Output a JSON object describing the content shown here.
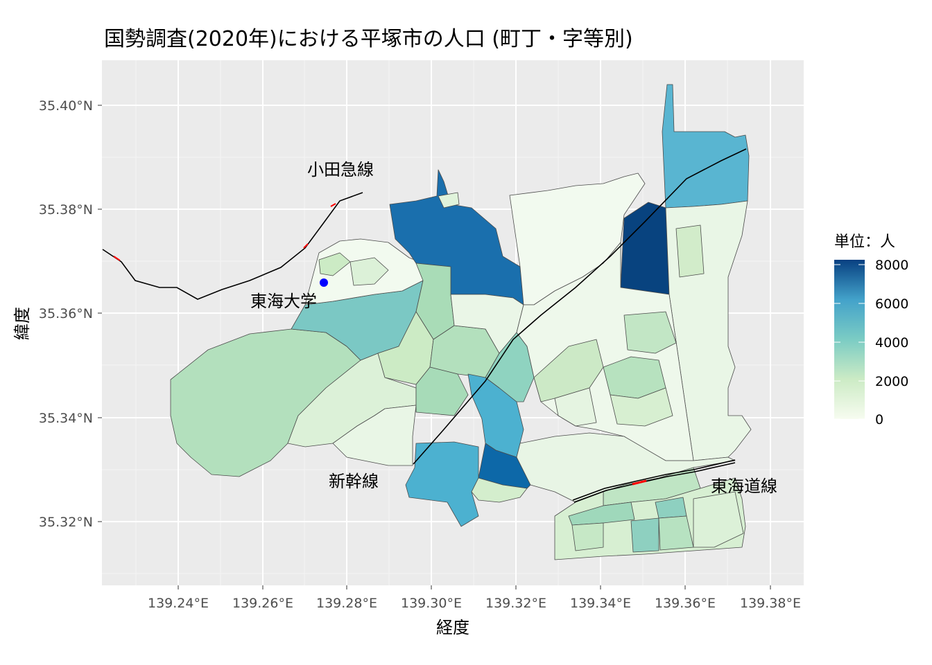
{
  "title": "国勢調査(2020年)における平塚市の人口 (町丁・字等別)",
  "xlabel": "経度",
  "ylabel": "緯度",
  "x_ticks": [
    "139.24°E",
    "139.26°E",
    "139.28°E",
    "139.30°E",
    "139.32°E",
    "139.34°E",
    "139.36°E",
    "139.38°E"
  ],
  "y_ticks": [
    "35.32°N",
    "35.34°N",
    "35.36°N",
    "35.38°N",
    "35.40°N"
  ],
  "legend": {
    "title": "単位：人",
    "ticks": [
      "8000",
      "6000",
      "4000",
      "2000",
      "0"
    ],
    "colors": [
      "#f7fcf0",
      "#ccebc5",
      "#7bccc4",
      "#43a2ca",
      "#084081"
    ]
  },
  "annotations": {
    "odakyu": "小田急線",
    "tokai_univ": "東海大学",
    "shinkansen": "新幹線",
    "tokaido": "東海道線"
  },
  "chart_data": {
    "type": "choropleth map",
    "title": "国勢調査(2020年)における平塚市の人口 (町丁・字等別)",
    "xlabel": "経度",
    "ylabel": "緯度",
    "xlim": [
      139.222,
      139.388
    ],
    "ylim": [
      35.309,
      35.408
    ],
    "fill_scale": {
      "name": "単位：人",
      "range": [
        0,
        8000
      ],
      "breaks": [
        0,
        2000,
        4000,
        6000,
        8000
      ]
    },
    "point": {
      "label": "東海大学",
      "lon": 139.275,
      "lat": 35.366,
      "color": "#0000ff"
    },
    "lines": [
      "小田急線",
      "新幹線",
      "東海道線"
    ]
  }
}
